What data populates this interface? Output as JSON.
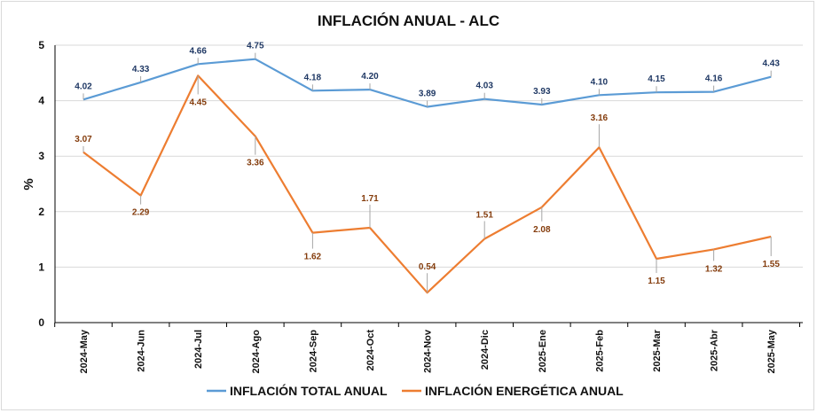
{
  "chart_data": {
    "type": "line",
    "title": "INFLACIÓN ANUAL - ALC",
    "ylabel": "%",
    "xlabel": "",
    "ylim": [
      0,
      5
    ],
    "yticks": [
      "0",
      "1",
      "2",
      "3",
      "4",
      "5"
    ],
    "grid": true,
    "legend": "bottom",
    "categories": [
      "2024-May",
      "2024-Jun",
      "2024-Jul",
      "2024-Ago",
      "2024-Sep",
      "2024-Oct",
      "2024-Nov",
      "2024-Dic",
      "2025-Ene",
      "2025-Feb",
      "2025-Mar",
      "2025-Abr",
      "2025-May"
    ],
    "series": [
      {
        "name": "INFLACIÓN TOTAL ANUAL",
        "color": "#5b9bd5",
        "label_color": "#1f3864",
        "values": [
          4.02,
          4.33,
          4.66,
          4.75,
          4.18,
          4.2,
          3.89,
          4.03,
          3.93,
          4.1,
          4.15,
          4.16,
          4.43
        ],
        "labels": [
          "4.02",
          "4.33",
          "4.66",
          "4.75",
          "4.18",
          "4.20",
          "3.89",
          "4.03",
          "3.93",
          "4.10",
          "4.15",
          "4.16",
          "4.43"
        ]
      },
      {
        "name": "INFLACIÓN ENERGÉTICA ANUAL",
        "color": "#ed7d31",
        "label_color": "#843c0c",
        "values": [
          3.07,
          2.29,
          4.45,
          3.36,
          1.62,
          1.71,
          0.54,
          1.51,
          2.08,
          3.16,
          1.15,
          1.32,
          1.55
        ],
        "labels": [
          "3.07",
          "2.29",
          "4.45",
          "3.36",
          "1.62",
          "1.71",
          "0.54",
          "1.51",
          "2.08",
          "3.16",
          "1.15",
          "1.32",
          "1.55"
        ]
      }
    ]
  }
}
